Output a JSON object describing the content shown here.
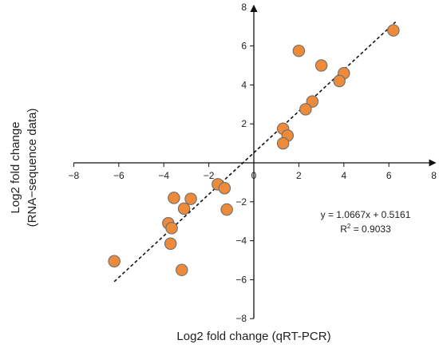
{
  "chart_data": {
    "type": "scatter",
    "title": "",
    "xlabel": "Log2 fold change (qRT-PCR)",
    "ylabel_lines": [
      "Log2 fold change",
      "(RNA−sequence data)"
    ],
    "xlim": [
      -8,
      8
    ],
    "ylim": [
      -8,
      8
    ],
    "xticks": [
      -8,
      -6,
      -4,
      -2,
      0,
      2,
      4,
      6,
      8
    ],
    "yticks": [
      -8,
      -6,
      -4,
      -2,
      2,
      4,
      6,
      8
    ],
    "xtick_labels": [
      "−8",
      "−6",
      "−4",
      "−2",
      "0",
      "2",
      "4",
      "6",
      "8"
    ],
    "ytick_labels": [
      "−8",
      "−6",
      "−4",
      "−2",
      "2",
      "4",
      "6",
      "8"
    ],
    "grid": false,
    "points": [
      {
        "x": 6.2,
        "y": 6.8
      },
      {
        "x": 2.0,
        "y": 5.75
      },
      {
        "x": 3.0,
        "y": 5.0
      },
      {
        "x": 4.0,
        "y": 4.6
      },
      {
        "x": 3.8,
        "y": 4.2
      },
      {
        "x": 2.6,
        "y": 3.15
      },
      {
        "x": 2.3,
        "y": 2.75
      },
      {
        "x": 1.3,
        "y": 1.75
      },
      {
        "x": 1.5,
        "y": 1.4
      },
      {
        "x": 1.3,
        "y": 1.0
      },
      {
        "x": -1.6,
        "y": -1.1
      },
      {
        "x": -1.3,
        "y": -1.3
      },
      {
        "x": -3.55,
        "y": -1.8
      },
      {
        "x": -2.8,
        "y": -1.85
      },
      {
        "x": -3.1,
        "y": -2.35
      },
      {
        "x": -1.2,
        "y": -2.4
      },
      {
        "x": -3.8,
        "y": -3.1
      },
      {
        "x": -3.65,
        "y": -3.35
      },
      {
        "x": -3.7,
        "y": -4.15
      },
      {
        "x": -6.2,
        "y": -5.05
      },
      {
        "x": -3.2,
        "y": -5.5
      }
    ],
    "trendline": {
      "slope": 1.0667,
      "intercept": 0.5161,
      "x_range": [
        -6.2,
        6.3
      ]
    },
    "annotation": {
      "equation": "y = 1.0667x + 0.5161",
      "r2_prefix": "R",
      "r2_sup": "2",
      "r2_value": " = 0.9033"
    },
    "colors": {
      "marker_fill": "#ED8B3B",
      "marker_stroke": "#6E6E6E",
      "axis": "#111111",
      "trendline": "#111111"
    }
  }
}
